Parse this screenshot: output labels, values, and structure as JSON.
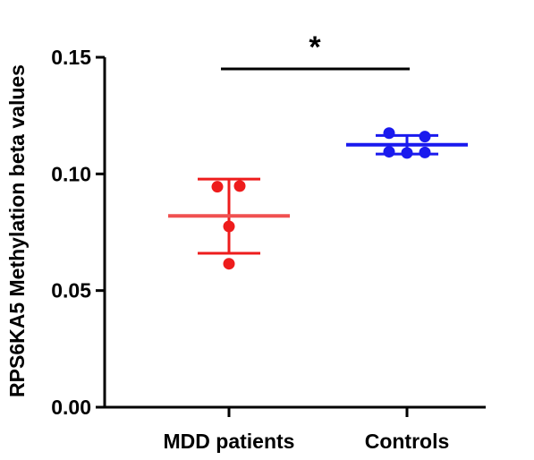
{
  "chart_data": {
    "type": "scatter",
    "ylabel": "RPS6KA5 Methylation beta values",
    "xlabel": "",
    "ylim": [
      0,
      0.15
    ],
    "yticks": [
      "0.00",
      "0.05",
      "0.10",
      "0.15"
    ],
    "ytick_values": [
      0,
      0.05,
      0.1,
      0.15
    ],
    "categories": [
      "MDD patients",
      "Controls"
    ],
    "series": [
      {
        "category": "MDD patients",
        "color": "#ee1c1c",
        "mean_color": "#f05050",
        "points": [
          0.0945,
          0.0948,
          0.0775,
          0.0615
        ],
        "mean": 0.082,
        "sd_upper": 0.0978,
        "sd_lower": 0.066
      },
      {
        "category": "Controls",
        "color": "#1a1aee",
        "mean_color": "#1a1aee",
        "points": [
          0.1175,
          0.116,
          0.1095,
          0.109,
          0.1092
        ],
        "mean": 0.1125,
        "sd_upper": 0.1165,
        "sd_lower": 0.1085
      }
    ],
    "significance": {
      "label": "*",
      "between": [
        "MDD patients",
        "Controls"
      ]
    },
    "grid": false,
    "legend": "none"
  }
}
